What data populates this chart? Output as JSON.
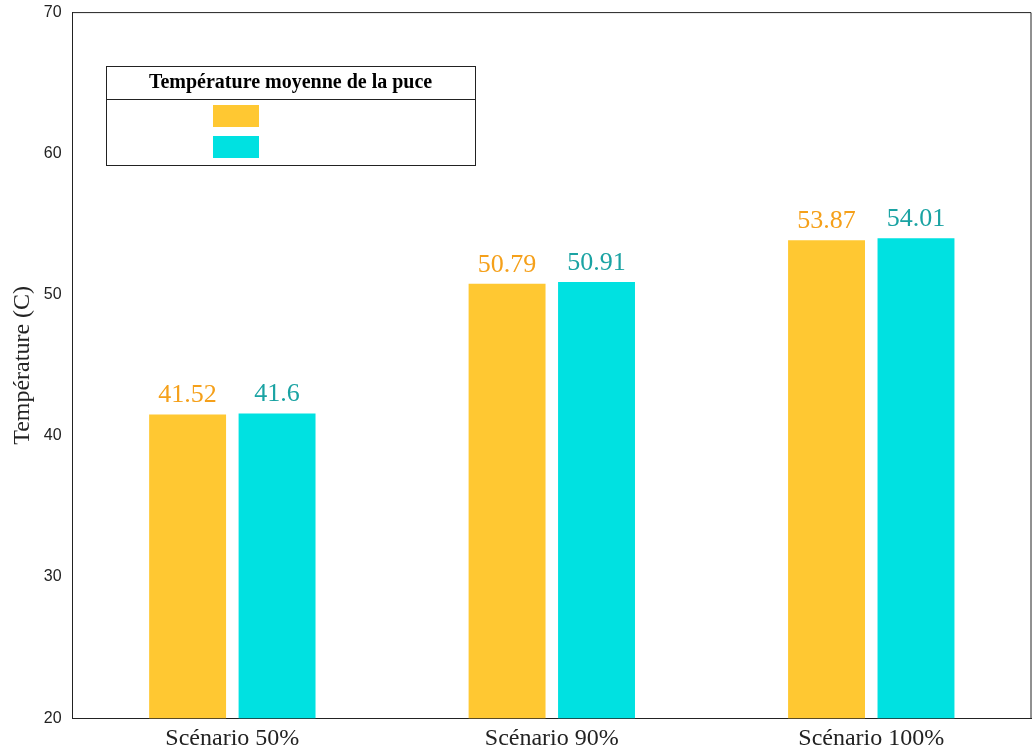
{
  "chart_data": {
    "type": "bar",
    "ylabel": "Température (C)",
    "legend_title": "Température moyenne de la puce",
    "categories": [
      "Scénario 50%",
      "Scénario 90%",
      "Scénario 100%"
    ],
    "series": [
      {
        "color": "#ffc832",
        "values": [
          41.52,
          50.79,
          53.87
        ]
      },
      {
        "color": "#00e1e1",
        "values": [
          41.6,
          50.91,
          54.01
        ]
      }
    ],
    "ylim": [
      20,
      70
    ],
    "yticks": [
      20,
      30,
      40,
      50,
      60,
      70
    ],
    "grid": false,
    "data_labels": true
  }
}
